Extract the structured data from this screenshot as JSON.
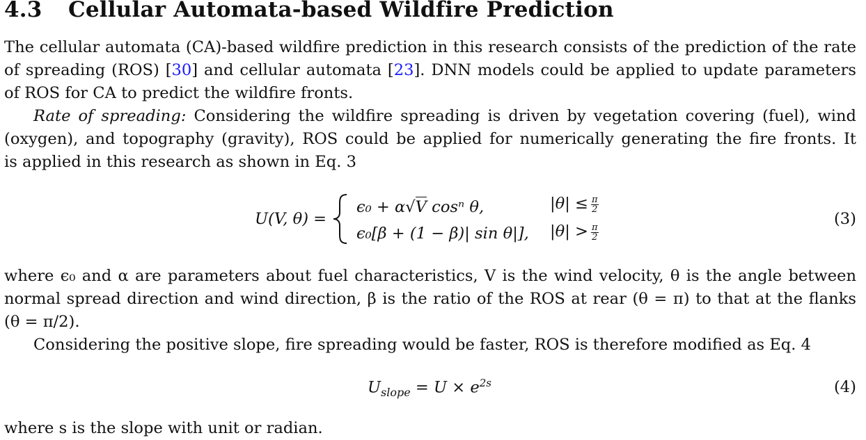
{
  "section": {
    "number": "4.3",
    "title": "Cellular Automata-based Wildfire Prediction"
  },
  "intro": {
    "line1": "The cellular automata (CA)-based wildfire prediction in this research consists of the prediction of the rate",
    "line2_a": "of spreading (ROS) [",
    "ref30": "30",
    "line2_b": "] and cellular automata [",
    "ref23": "23",
    "line2_c": "]. DNN models could be applied to update parameters",
    "line3": "of ROS for CA to predict the wildfire fronts."
  },
  "ros": {
    "label": "Rate of spreading:",
    "line1_rest": "Considering the wildfire spreading is driven by vegetation covering (fuel), wind",
    "line2": "(oxygen), and topography (gravity), ROS could be applied for numerically generating the fire fronts. It",
    "line3": "is applied in this research as shown in Eq. 3"
  },
  "eq3": {
    "lhs": "U(V, θ) =",
    "case1_expr_a": "ϵ₀ + α",
    "case1_sqrt": "V",
    "case1_expr_b": " cosⁿ θ,",
    "case1_cond": "|θ| ≤",
    "case2_expr": "ϵ₀[β + (1 − β)| sin θ|],",
    "case2_cond": "|θ| >",
    "frac_num": "π",
    "frac_den": "2",
    "number": "(3)"
  },
  "where1": {
    "line1": "where ϵ₀ and α are parameters about fuel characteristics, V is the wind velocity, θ is the angle between",
    "line2": "normal spread direction and wind direction, β is the ratio of the ROS at rear (θ = π) to that at the flanks",
    "line3": "(θ = π/2)."
  },
  "slope": {
    "line1": "Considering the positive slope, fire spreading would be faster, ROS is therefore modified as Eq. 4"
  },
  "eq4": {
    "lhs": "U",
    "lhs_sub": "slope",
    "rhs": " = U × e",
    "rhs_sup": "2s",
    "number": "(4)"
  },
  "where2": {
    "line1": "where s is the slope with unit or radian."
  }
}
